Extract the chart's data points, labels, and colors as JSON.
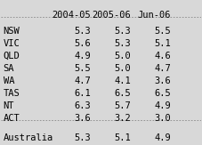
{
  "columns": [
    "2004-05",
    "2005-06",
    "Jun-06"
  ],
  "rows": [
    [
      "NSW",
      5.3,
      5.3,
      5.5
    ],
    [
      "VIC",
      5.6,
      5.3,
      5.1
    ],
    [
      "QLD",
      4.9,
      5.0,
      4.6
    ],
    [
      "SA",
      5.5,
      5.0,
      4.7
    ],
    [
      "WA",
      4.7,
      4.1,
      3.6
    ],
    [
      "TAS",
      6.1,
      6.5,
      6.5
    ],
    [
      "NT",
      6.3,
      5.7,
      4.9
    ],
    [
      "ACT",
      3.6,
      3.2,
      3.0
    ]
  ],
  "footer_row": [
    "Australia",
    5.3,
    5.1,
    4.9
  ],
  "bg_color": "#d8d8d8",
  "header_color": "#d8d8d8",
  "text_color": "#000000",
  "font_size": 7.5,
  "header_font_size": 7.5
}
